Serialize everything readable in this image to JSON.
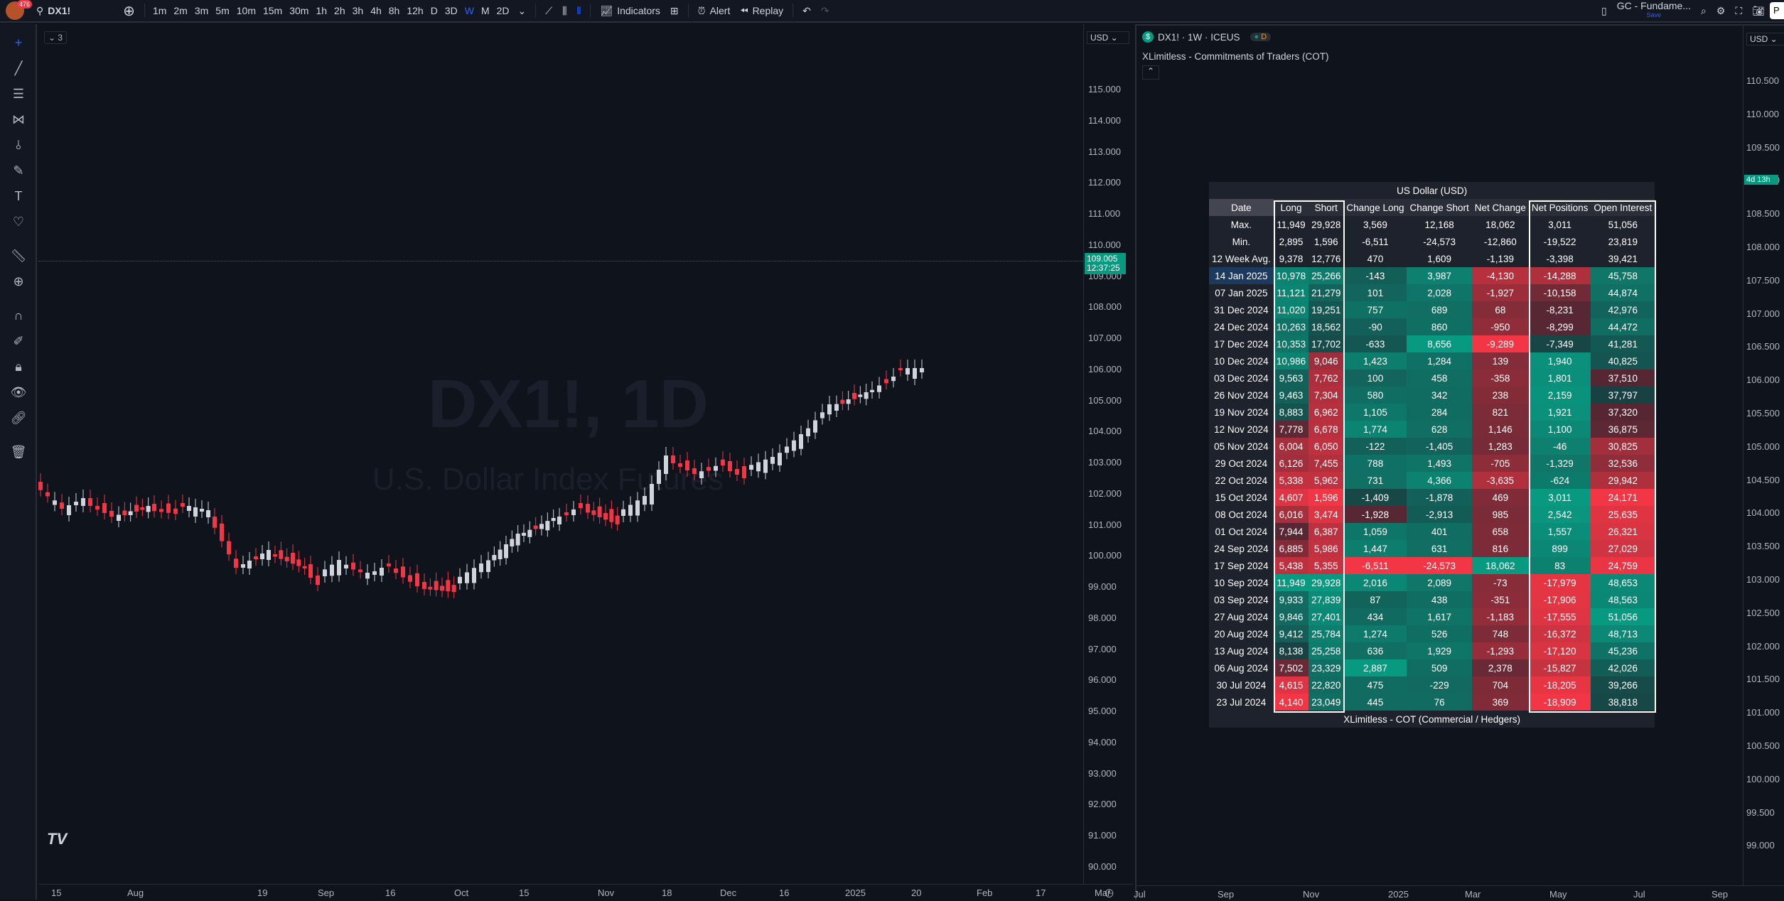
{
  "topbar": {
    "notif_count": "476",
    "symbol": "DX1!",
    "intervals": [
      "1m",
      "2m",
      "3m",
      "5m",
      "10m",
      "15m",
      "30m",
      "1h",
      "2h",
      "3h",
      "4h",
      "8h",
      "12h",
      "D",
      "3D",
      "W",
      "M",
      "2D"
    ],
    "active_interval": "W",
    "indicators_label": "Indicators",
    "alert_label": "Alert",
    "replay_label": "Replay",
    "layout_name": "GC - Fundame...",
    "layout_status": "Save",
    "colors": {
      "accent": "#2962ff"
    }
  },
  "chart1": {
    "watermark_symbol": "DX1!, 1D",
    "watermark_name": "U.S. Dollar Index Futures",
    "indicator_count": "3",
    "currency": "USD",
    "price_tag": "109.005",
    "countdown": "12:37:25",
    "price_axis": [
      "115.000",
      "114.000",
      "113.000",
      "112.000",
      "111.000",
      "110.000",
      "109.000",
      "108.000",
      "107.000",
      "106.000",
      "105.000",
      "104.000",
      "103.000",
      "102.000",
      "101.000",
      "100.000",
      "99.000",
      "98.000",
      "97.000",
      "96.000",
      "95.000",
      "94.000",
      "93.000",
      "92.000",
      "91.000",
      "90.000"
    ],
    "time_axis": [
      "15",
      "Aug",
      "19",
      "Sep",
      "16",
      "Oct",
      "15",
      "Nov",
      "18",
      "Dec",
      "16",
      "2025",
      "20",
      "Feb",
      "17",
      "Mar"
    ],
    "logo": "TV"
  },
  "chart2": {
    "title": "DX1! · 1W · ICEUS",
    "indicator_name": "XLimitless - Commitments of Traders (COT)",
    "currency": "USD",
    "countdown": "4d 13h",
    "price_axis": [
      "110.500",
      "110.000",
      "109.500",
      "109.000",
      "108.500",
      "108.000",
      "107.500",
      "107.000",
      "106.500",
      "106.000",
      "105.500",
      "105.000",
      "104.500",
      "104.000",
      "103.500",
      "103.000",
      "102.500",
      "102.000",
      "101.500",
      "101.000",
      "100.500",
      "100.000",
      "99.500",
      "99.000"
    ],
    "time_axis": [
      "Jul",
      "Sep",
      "Nov",
      "2025",
      "Mar",
      "May",
      "Jul",
      "Sep"
    ]
  },
  "cot": {
    "title": "US Dollar (USD)",
    "footer": "XLimitless - COT (Commercial / Hedgers)",
    "headers": [
      "Date",
      "Long",
      "Short",
      "Change Long",
      "Change Short",
      "Net Change",
      "Net Positions",
      "Open Interest"
    ],
    "stats": [
      [
        "Max.",
        "11,949",
        "29,928",
        "3,569",
        "12,168",
        "18,062",
        "3,011",
        "51,056"
      ],
      [
        "Min.",
        "2,895",
        "1,596",
        "-6,511",
        "-24,573",
        "-12,860",
        "-19,522",
        "23,819"
      ],
      [
        "12 Week Avg.",
        "9,378",
        "12,776",
        "470",
        "1,609",
        "-1,139",
        "-3,398",
        "39,421"
      ]
    ],
    "rows": [
      [
        "14 Jan 2025",
        "10,978",
        "25,266",
        "-143",
        "3,987",
        "-4,130",
        "-14,288",
        "45,758"
      ],
      [
        "07 Jan 2025",
        "11,121",
        "21,279",
        "101",
        "2,028",
        "-1,927",
        "-10,158",
        "44,874"
      ],
      [
        "31 Dec 2024",
        "11,020",
        "19,251",
        "757",
        "689",
        "68",
        "-8,231",
        "42,976"
      ],
      [
        "24 Dec 2024",
        "10,263",
        "18,562",
        "-90",
        "860",
        "-950",
        "-8,299",
        "44,472"
      ],
      [
        "17 Dec 2024",
        "10,353",
        "17,702",
        "-633",
        "8,656",
        "-9,289",
        "-7,349",
        "41,281"
      ],
      [
        "10 Dec 2024",
        "10,986",
        "9,046",
        "1,423",
        "1,284",
        "139",
        "1,940",
        "40,825"
      ],
      [
        "03 Dec 2024",
        "9,563",
        "7,762",
        "100",
        "458",
        "-358",
        "1,801",
        "37,510"
      ],
      [
        "26 Nov 2024",
        "9,463",
        "7,304",
        "580",
        "342",
        "238",
        "2,159",
        "37,797"
      ],
      [
        "19 Nov 2024",
        "8,883",
        "6,962",
        "1,105",
        "284",
        "821",
        "1,921",
        "37,320"
      ],
      [
        "12 Nov 2024",
        "7,778",
        "6,678",
        "1,774",
        "628",
        "1,146",
        "1,100",
        "36,875"
      ],
      [
        "05 Nov 2024",
        "6,004",
        "6,050",
        "-122",
        "-1,405",
        "1,283",
        "-46",
        "30,825"
      ],
      [
        "29 Oct 2024",
        "6,126",
        "7,455",
        "788",
        "1,493",
        "-705",
        "-1,329",
        "32,536"
      ],
      [
        "22 Oct 2024",
        "5,338",
        "5,962",
        "731",
        "4,366",
        "-3,635",
        "-624",
        "29,942"
      ],
      [
        "15 Oct 2024",
        "4,607",
        "1,596",
        "-1,409",
        "-1,878",
        "469",
        "3,011",
        "24,171"
      ],
      [
        "08 Oct 2024",
        "6,016",
        "3,474",
        "-1,928",
        "-2,913",
        "985",
        "2,542",
        "25,635"
      ],
      [
        "01 Oct 2024",
        "7,944",
        "6,387",
        "1,059",
        "401",
        "658",
        "1,557",
        "26,321"
      ],
      [
        "24 Sep 2024",
        "6,885",
        "5,986",
        "1,447",
        "631",
        "816",
        "899",
        "27,029"
      ],
      [
        "17 Sep 2024",
        "5,438",
        "5,355",
        "-6,511",
        "-24,573",
        "18,062",
        "83",
        "24,759"
      ],
      [
        "10 Sep 2024",
        "11,949",
        "29,928",
        "2,016",
        "2,089",
        "-73",
        "-17,979",
        "48,653"
      ],
      [
        "03 Sep 2024",
        "9,933",
        "27,839",
        "87",
        "438",
        "-351",
        "-17,906",
        "48,563"
      ],
      [
        "27 Aug 2024",
        "9,846",
        "27,401",
        "434",
        "1,617",
        "-1,183",
        "-17,555",
        "51,056"
      ],
      [
        "20 Aug 2024",
        "9,412",
        "25,784",
        "1,274",
        "526",
        "748",
        "-16,372",
        "48,713"
      ],
      [
        "13 Aug 2024",
        "8,138",
        "25,258",
        "636",
        "1,929",
        "-1,293",
        "-17,120",
        "45,236"
      ],
      [
        "06 Aug 2024",
        "7,502",
        "23,329",
        "2,887",
        "509",
        "2,378",
        "-15,827",
        "42,026"
      ],
      [
        "30 Jul 2024",
        "4,615",
        "22,820",
        "475",
        "-229",
        "704",
        "-18,205",
        "39,266"
      ],
      [
        "23 Jul 2024",
        "4,140",
        "23,049",
        "445",
        "76",
        "369",
        "-18,909",
        "38,818"
      ]
    ]
  }
}
